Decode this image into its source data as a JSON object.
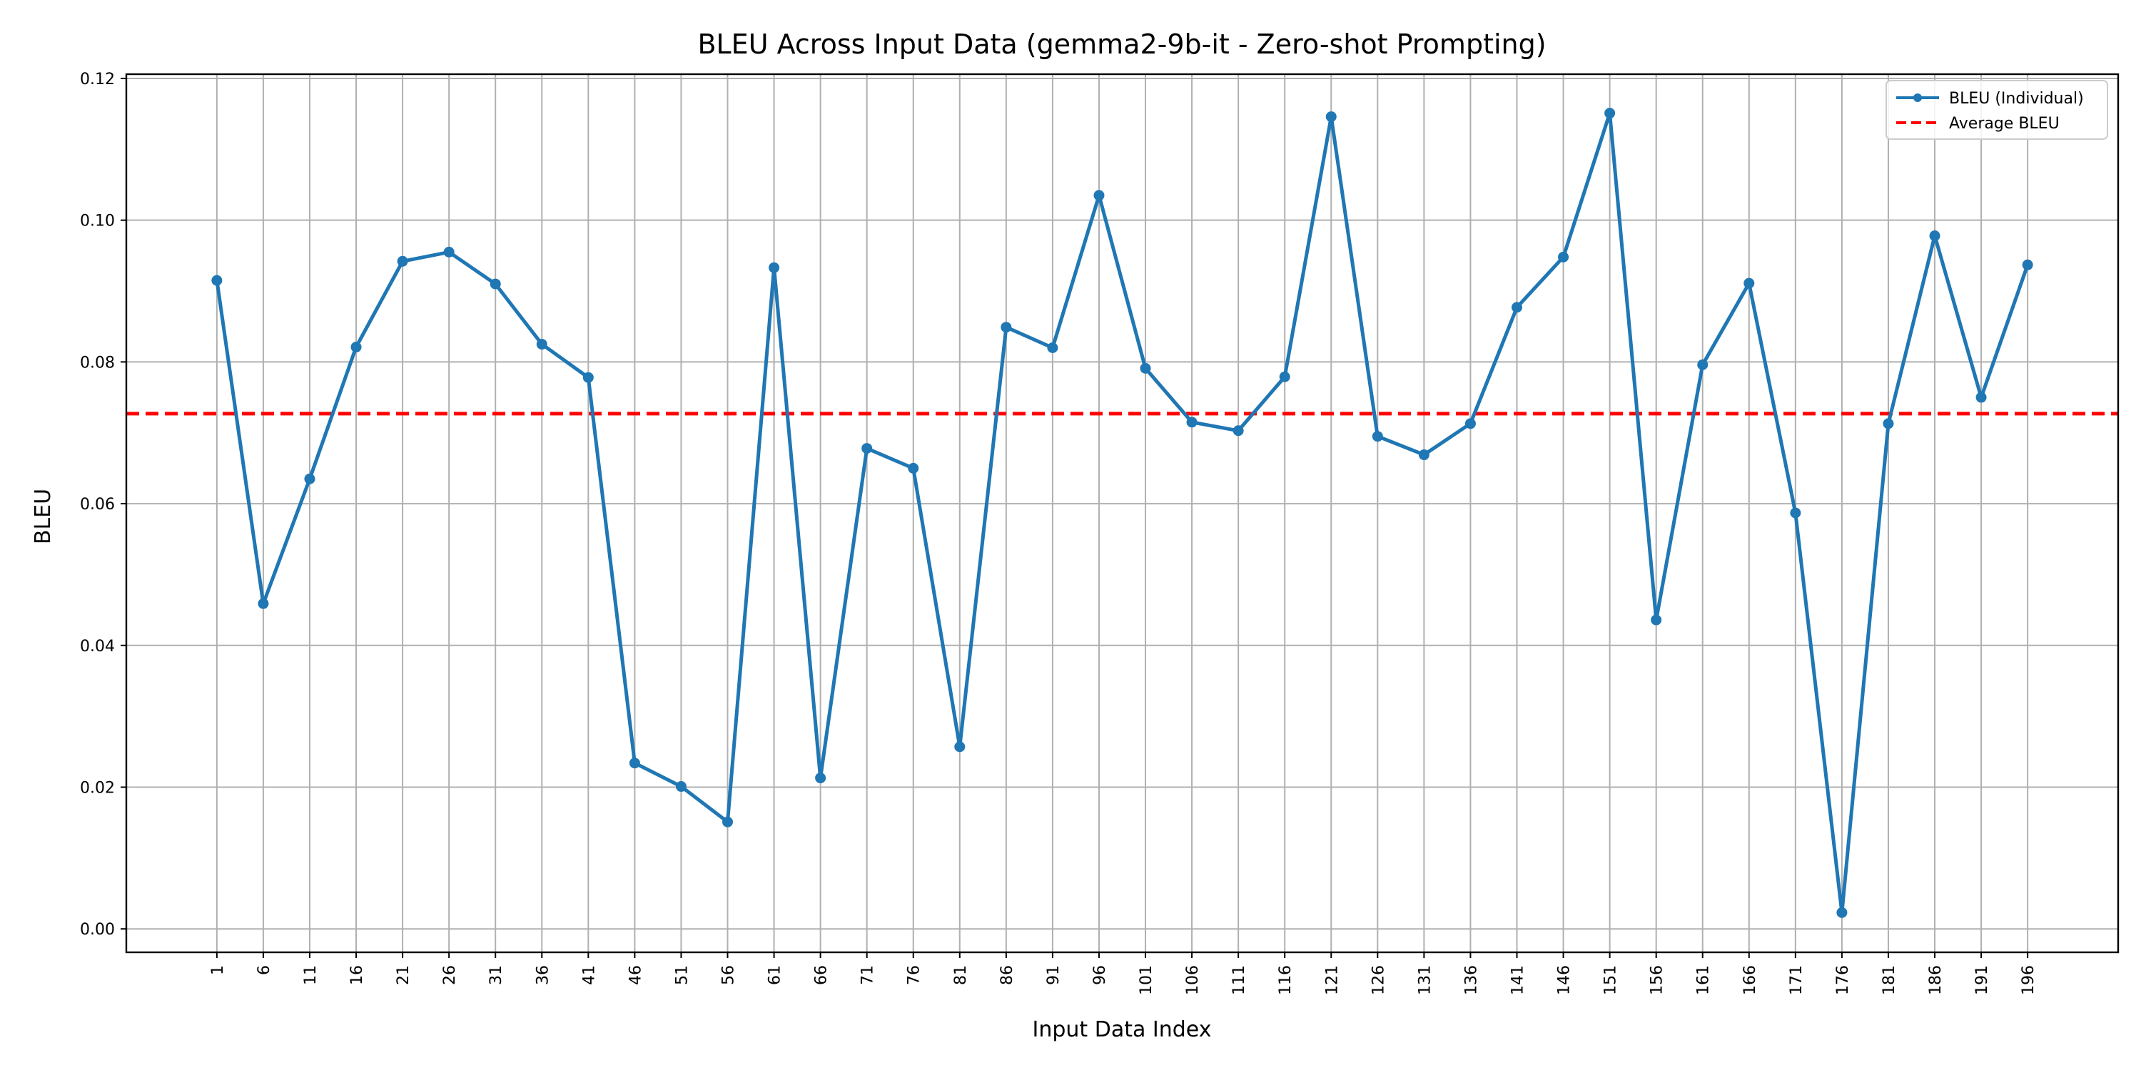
{
  "chart_data": {
    "type": "line",
    "title": "BLEU Across Input Data (gemma2-9b-it - Zero-shot Prompting)",
    "xlabel": "Input Data Index",
    "ylabel": "BLEU",
    "ylim": [
      -0.0033,
      0.1206
    ],
    "yticks": [
      0.0,
      0.02,
      0.04,
      0.06,
      0.08,
      0.1,
      0.12
    ],
    "ytick_labels": [
      "0.00",
      "0.02",
      "0.04",
      "0.06",
      "0.08",
      "0.10",
      "0.12"
    ],
    "xtick_labels": [
      "1",
      "6",
      "11",
      "16",
      "21",
      "26",
      "31",
      "36",
      "41",
      "46",
      "51",
      "56",
      "61",
      "66",
      "71",
      "76",
      "81",
      "86",
      "91",
      "96",
      "101",
      "106",
      "111",
      "116",
      "121",
      "126",
      "131",
      "136",
      "141",
      "146",
      "151",
      "156",
      "161",
      "166",
      "171",
      "176",
      "181",
      "186",
      "191",
      "196"
    ],
    "x": [
      1,
      6,
      11,
      16,
      21,
      26,
      31,
      36,
      41,
      46,
      51,
      56,
      61,
      66,
      71,
      76,
      81,
      86,
      91,
      96,
      101,
      106,
      111,
      116,
      121,
      126,
      131,
      136,
      141,
      146,
      151,
      156,
      161,
      166,
      171,
      176,
      181,
      186,
      191,
      196
    ],
    "xlim": [
      -8.75,
      205.75
    ],
    "grid": true,
    "legend_placement": "top-right",
    "series": [
      {
        "name": "BLEU (Individual)",
        "color": "#1f77b4",
        "style": "solid-with-markers",
        "values": [
          0.0915,
          0.0459,
          0.0635,
          0.0821,
          0.0942,
          0.0955,
          0.091,
          0.0825,
          0.0778,
          0.0234,
          0.0201,
          0.0151,
          0.0933,
          0.0213,
          0.0678,
          0.065,
          0.0257,
          0.0849,
          0.082,
          0.1035,
          0.0791,
          0.0715,
          0.0703,
          0.0779,
          0.1146,
          0.0695,
          0.0669,
          0.0713,
          0.0877,
          0.0948,
          0.1151,
          0.0436,
          0.0796,
          0.0911,
          0.0587,
          0.0023,
          0.0713,
          0.0978,
          0.075,
          0.0937
        ]
      },
      {
        "name": "Average BLEU",
        "color": "#ff0000",
        "style": "dashed",
        "value": 0.0727
      }
    ]
  }
}
